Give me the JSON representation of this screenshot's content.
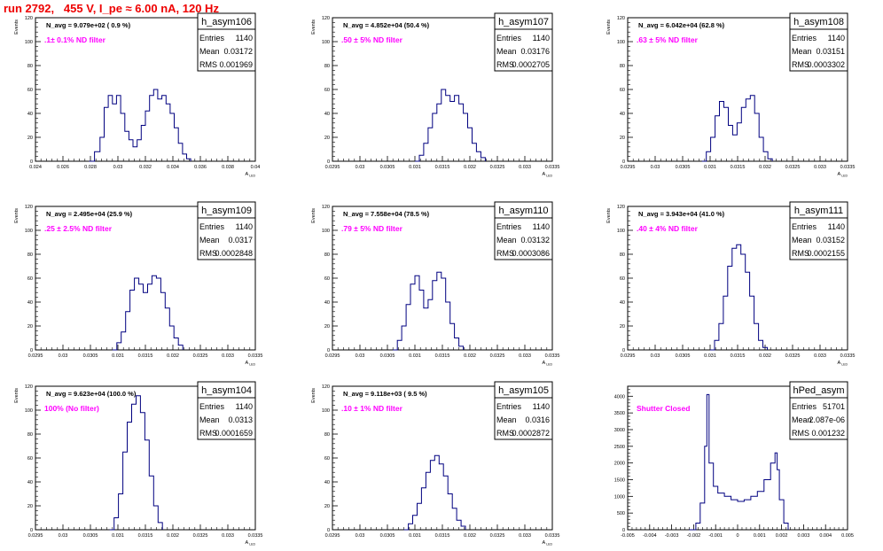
{
  "run_title": "run 2792,   455 V, I_pe ≈ 6.00 nA, 120 Hz",
  "colors": {
    "frame": "#000000",
    "histogram": "#000080",
    "magenta": "#ff00ff",
    "title": "#ee0000",
    "background": "#ffffff"
  },
  "chart_data": [
    {
      "type": "histogram",
      "name": "h_asym106",
      "navg": "N_avg = 9.079e+02 ( 0.9 %)",
      "filter": ".1± 0.1% ND filter",
      "stats": {
        "entries": "1140",
        "mean": "0.03172",
        "rms": "0.001969"
      },
      "xlim": [
        0.024,
        0.04
      ],
      "ylim": [
        0,
        120
      ],
      "xticks": [
        "0.024",
        "0.026",
        "0.028",
        "0.03",
        "0.032",
        "0.034",
        "0.036",
        "0.038",
        "0.04"
      ],
      "yticks": [
        "0",
        "20",
        "40",
        "60",
        "80",
        "100",
        "120"
      ],
      "ylabel": "Events",
      "xlabel": "A_{LED}",
      "curve": [
        [
          0.0279,
          0
        ],
        [
          0.0283,
          8
        ],
        [
          0.0287,
          20
        ],
        [
          0.029,
          45
        ],
        [
          0.0293,
          55
        ],
        [
          0.0296,
          48
        ],
        [
          0.0299,
          55
        ],
        [
          0.0302,
          40
        ],
        [
          0.0305,
          25
        ],
        [
          0.0308,
          18
        ],
        [
          0.0311,
          12
        ],
        [
          0.0314,
          18
        ],
        [
          0.0317,
          30
        ],
        [
          0.032,
          42
        ],
        [
          0.0323,
          55
        ],
        [
          0.0326,
          60
        ],
        [
          0.0329,
          52
        ],
        [
          0.0332,
          55
        ],
        [
          0.0335,
          48
        ],
        [
          0.0338,
          40
        ],
        [
          0.0341,
          28
        ],
        [
          0.0344,
          15
        ],
        [
          0.0347,
          6
        ],
        [
          0.035,
          2
        ],
        [
          0.0353,
          0
        ]
      ]
    },
    {
      "type": "histogram",
      "name": "h_asym107",
      "navg": "N_avg = 4.852e+04 (50.4 %)",
      "filter": ".50 ± 5% ND filter",
      "stats": {
        "entries": "1140",
        "mean": "0.03176",
        "rms": "0.0002705"
      },
      "xlim": [
        0.0295,
        0.0335
      ],
      "ylim": [
        0,
        120
      ],
      "xticks": [
        "0.0295",
        "0.03",
        "0.0305",
        "0.031",
        "0.0315",
        "0.032",
        "0.0325",
        "0.033",
        "0.0335"
      ],
      "yticks": [
        "0",
        "20",
        "40",
        "60",
        "80",
        "100",
        "120"
      ],
      "ylabel": "Events",
      "xlabel": "A_{LED}",
      "curve": [
        [
          0.031,
          0
        ],
        [
          0.03108,
          5
        ],
        [
          0.03116,
          15
        ],
        [
          0.03124,
          28
        ],
        [
          0.03132,
          40
        ],
        [
          0.0314,
          48
        ],
        [
          0.03148,
          60
        ],
        [
          0.03156,
          55
        ],
        [
          0.03164,
          50
        ],
        [
          0.03172,
          55
        ],
        [
          0.0318,
          48
        ],
        [
          0.03188,
          40
        ],
        [
          0.03196,
          28
        ],
        [
          0.03204,
          15
        ],
        [
          0.03212,
          8
        ],
        [
          0.0322,
          3
        ],
        [
          0.03228,
          0
        ]
      ]
    },
    {
      "type": "histogram",
      "name": "h_asym108",
      "navg": "N_avg = 6.042e+04 (62.8 %)",
      "filter": ".63 ± 5% ND filter",
      "stats": {
        "entries": "1140",
        "mean": "0.03151",
        "rms": "0.0003302"
      },
      "xlim": [
        0.0295,
        0.0335
      ],
      "ylim": [
        0,
        120
      ],
      "xticks": [
        "0.0295",
        "0.03",
        "0.0305",
        "0.031",
        "0.0315",
        "0.032",
        "0.0325",
        "0.033",
        "0.0335"
      ],
      "yticks": [
        "0",
        "20",
        "40",
        "60",
        "80",
        "100",
        "120"
      ],
      "ylabel": "Events",
      "xlabel": "A_{LED}",
      "curve": [
        [
          0.03085,
          0
        ],
        [
          0.03093,
          8
        ],
        [
          0.03101,
          20
        ],
        [
          0.03109,
          38
        ],
        [
          0.03117,
          50
        ],
        [
          0.03125,
          45
        ],
        [
          0.03133,
          30
        ],
        [
          0.03141,
          22
        ],
        [
          0.03149,
          32
        ],
        [
          0.03157,
          45
        ],
        [
          0.03165,
          52
        ],
        [
          0.03173,
          55
        ],
        [
          0.03181,
          40
        ],
        [
          0.03189,
          20
        ],
        [
          0.03197,
          8
        ],
        [
          0.03205,
          2
        ],
        [
          0.03213,
          0
        ]
      ]
    },
    {
      "type": "histogram",
      "name": "h_asym109",
      "navg": "N_avg = 2.495e+04 (25.9 %)",
      "filter": ".25 ± 2.5% ND filter",
      "stats": {
        "entries": "1140",
        "mean": "0.0317",
        "rms": "0.0002848"
      },
      "xlim": [
        0.0295,
        0.0335
      ],
      "ylim": [
        0,
        120
      ],
      "xticks": [
        "0.0295",
        "0.03",
        "0.0305",
        "0.031",
        "0.0315",
        "0.032",
        "0.0325",
        "0.033",
        "0.0335"
      ],
      "yticks": [
        "0",
        "20",
        "40",
        "60",
        "80",
        "100",
        "120"
      ],
      "ylabel": "Events",
      "xlabel": "A_{LED}",
      "curve": [
        [
          0.0309,
          0
        ],
        [
          0.03098,
          6
        ],
        [
          0.03106,
          15
        ],
        [
          0.03114,
          32
        ],
        [
          0.03122,
          50
        ],
        [
          0.0313,
          60
        ],
        [
          0.03138,
          55
        ],
        [
          0.03146,
          48
        ],
        [
          0.03154,
          55
        ],
        [
          0.03162,
          62
        ],
        [
          0.0317,
          60
        ],
        [
          0.03178,
          48
        ],
        [
          0.03186,
          35
        ],
        [
          0.03194,
          20
        ],
        [
          0.03202,
          10
        ],
        [
          0.0321,
          4
        ],
        [
          0.03218,
          0
        ]
      ]
    },
    {
      "type": "histogram",
      "name": "h_asym110",
      "navg": "N_avg = 7.558e+04 (78.5 %)",
      "filter": ".79 ± 5% ND filter",
      "stats": {
        "entries": "1140",
        "mean": "0.03132",
        "rms": "0.0003086"
      },
      "xlim": [
        0.0295,
        0.0335
      ],
      "ylim": [
        0,
        120
      ],
      "xticks": [
        "0.0295",
        "0.03",
        "0.0305",
        "0.031",
        "0.0315",
        "0.032",
        "0.0325",
        "0.033",
        "0.0335"
      ],
      "yticks": [
        "0",
        "20",
        "40",
        "60",
        "80",
        "100",
        "120"
      ],
      "ylabel": "Events",
      "xlabel": "A_{LED}",
      "curve": [
        [
          0.0306,
          0
        ],
        [
          0.03068,
          8
        ],
        [
          0.03076,
          20
        ],
        [
          0.03084,
          38
        ],
        [
          0.03092,
          55
        ],
        [
          0.031,
          62
        ],
        [
          0.03108,
          50
        ],
        [
          0.03116,
          35
        ],
        [
          0.03124,
          42
        ],
        [
          0.03132,
          58
        ],
        [
          0.0314,
          65
        ],
        [
          0.03148,
          60
        ],
        [
          0.03156,
          40
        ],
        [
          0.03164,
          22
        ],
        [
          0.03172,
          10
        ],
        [
          0.0318,
          3
        ],
        [
          0.03188,
          0
        ]
      ]
    },
    {
      "type": "histogram",
      "name": "h_asym111",
      "navg": "N_avg = 3.943e+04 (41.0 %)",
      "filter": ".40 ± 4% ND filter",
      "stats": {
        "entries": "1140",
        "mean": "0.03152",
        "rms": "0.0002155"
      },
      "xlim": [
        0.0295,
        0.0335
      ],
      "ylim": [
        0,
        120
      ],
      "xticks": [
        "0.0295",
        "0.03",
        "0.0305",
        "0.031",
        "0.0315",
        "0.032",
        "0.0325",
        "0.033",
        "0.0335"
      ],
      "yticks": [
        "0",
        "20",
        "40",
        "60",
        "80",
        "100",
        "120"
      ],
      "ylabel": "Events",
      "xlabel": "A_{LED}",
      "curve": [
        [
          0.031,
          0
        ],
        [
          0.03108,
          8
        ],
        [
          0.03116,
          22
        ],
        [
          0.03124,
          45
        ],
        [
          0.03132,
          70
        ],
        [
          0.0314,
          85
        ],
        [
          0.03148,
          88
        ],
        [
          0.03156,
          80
        ],
        [
          0.03164,
          65
        ],
        [
          0.03172,
          45
        ],
        [
          0.0318,
          22
        ],
        [
          0.03188,
          8
        ],
        [
          0.03196,
          2
        ],
        [
          0.03204,
          0
        ]
      ]
    },
    {
      "type": "histogram",
      "name": "h_asym104",
      "navg": "N_avg = 9.623e+04 (100.0 %)",
      "filter": "100% (No filter)",
      "stats": {
        "entries": "1140",
        "mean": "0.0313",
        "rms": "0.0001659"
      },
      "xlim": [
        0.0295,
        0.0335
      ],
      "ylim": [
        0,
        120
      ],
      "xticks": [
        "0.0295",
        "0.03",
        "0.0305",
        "0.031",
        "0.0315",
        "0.032",
        "0.0325",
        "0.033",
        "0.0335"
      ],
      "yticks": [
        "0",
        "20",
        "40",
        "60",
        "80",
        "100",
        "120"
      ],
      "ylabel": "Events",
      "xlabel": "A_{LED}",
      "curve": [
        [
          0.03085,
          0
        ],
        [
          0.03093,
          10
        ],
        [
          0.03101,
          30
        ],
        [
          0.03109,
          65
        ],
        [
          0.03117,
          90
        ],
        [
          0.03125,
          105
        ],
        [
          0.03133,
          112
        ],
        [
          0.03141,
          98
        ],
        [
          0.03149,
          75
        ],
        [
          0.03157,
          45
        ],
        [
          0.03165,
          20
        ],
        [
          0.03173,
          6
        ],
        [
          0.03181,
          0
        ]
      ]
    },
    {
      "type": "histogram",
      "name": "h_asym105",
      "navg": "N_avg = 9.118e+03 ( 9.5 %)",
      "filter": ".10 ± 1% ND filter",
      "stats": {
        "entries": "1140",
        "mean": "0.0316",
        "rms": "0.0002872"
      },
      "xlim": [
        0.0295,
        0.0335
      ],
      "ylim": [
        0,
        120
      ],
      "xticks": [
        "0.0295",
        "0.03",
        "0.0305",
        "0.031",
        "0.0315",
        "0.032",
        "0.0325",
        "0.033",
        "0.0335"
      ],
      "yticks": [
        "0",
        "20",
        "40",
        "60",
        "80",
        "100",
        "120"
      ],
      "ylabel": "Events",
      "xlabel": "A_{LED}",
      "curve": [
        [
          0.0308,
          0
        ],
        [
          0.03088,
          5
        ],
        [
          0.03096,
          12
        ],
        [
          0.03104,
          22
        ],
        [
          0.03112,
          35
        ],
        [
          0.0312,
          48
        ],
        [
          0.03128,
          58
        ],
        [
          0.03136,
          62
        ],
        [
          0.03144,
          55
        ],
        [
          0.03152,
          45
        ],
        [
          0.0316,
          30
        ],
        [
          0.03168,
          18
        ],
        [
          0.03176,
          8
        ],
        [
          0.03184,
          3
        ],
        [
          0.03192,
          0
        ]
      ]
    },
    {
      "type": "histogram",
      "name": "hPed_asym",
      "navg": "",
      "filter": "Shutter Closed",
      "stats": {
        "entries": "51701",
        "mean": "2.087e-06",
        "rms": "0.001232"
      },
      "xlim": [
        -0.005,
        0.005
      ],
      "ylim": [
        0,
        4300
      ],
      "xticks": [
        "-0.005",
        "-0.004",
        "-0.003",
        "-0.002",
        "-0.001",
        "0",
        "0.001",
        "0.002",
        "0.003",
        "0.004",
        "0.005"
      ],
      "yticks": [
        "0",
        "500",
        "1000",
        "1500",
        "2000",
        "2500",
        "3000",
        "3500",
        "4000"
      ],
      "ylabel": "",
      "xlabel": "",
      "curve": [
        [
          -0.0022,
          0
        ],
        [
          -0.0019,
          200
        ],
        [
          -0.0017,
          800
        ],
        [
          -0.0015,
          2500
        ],
        [
          -0.0014,
          4050
        ],
        [
          -0.0013,
          2000
        ],
        [
          -0.0011,
          1300
        ],
        [
          -0.0009,
          1100
        ],
        [
          -0.0006,
          1000
        ],
        [
          -0.0003,
          900
        ],
        [
          0,
          850
        ],
        [
          0.0003,
          900
        ],
        [
          0.0006,
          1000
        ],
        [
          0.0009,
          1150
        ],
        [
          0.0012,
          1500
        ],
        [
          0.0015,
          2000
        ],
        [
          0.0017,
          2300
        ],
        [
          0.0018,
          1800
        ],
        [
          0.0019,
          900
        ],
        [
          0.0021,
          200
        ],
        [
          0.0023,
          0
        ]
      ]
    }
  ]
}
